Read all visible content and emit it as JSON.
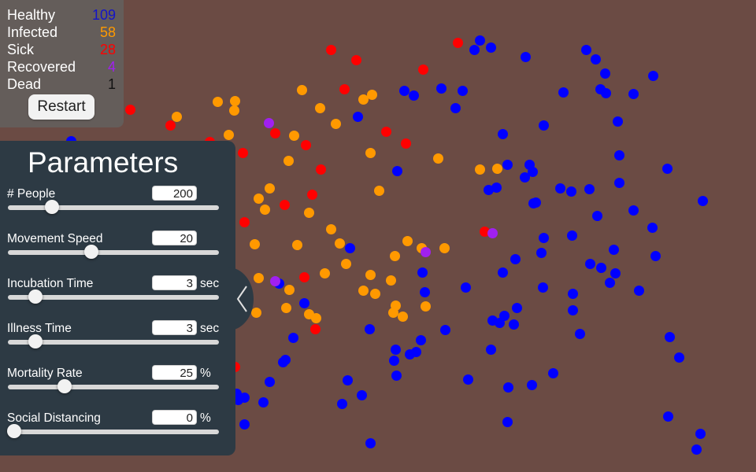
{
  "stats": {
    "rows": [
      {
        "label": "Healthy",
        "value": "109",
        "color": "#1414c8"
      },
      {
        "label": "Infected",
        "value": "58",
        "color": "#ff9a00"
      },
      {
        "label": "Sick",
        "value": "28",
        "color": "#ff0000"
      },
      {
        "label": "Recovered",
        "value": "4",
        "color": "#a020f0"
      },
      {
        "label": "Dead",
        "value": "1",
        "color": "#111111"
      }
    ],
    "restart_label": "Restart"
  },
  "parameters": {
    "title": "Parameters",
    "items": [
      {
        "label": "# People",
        "value": "200",
        "unit": "",
        "slider_fraction": 0.21
      },
      {
        "label": "Movement Speed",
        "value": "20",
        "unit": "",
        "slider_fraction": 0.395
      },
      {
        "label": "Incubation Time",
        "value": "3",
        "unit": "sec",
        "slider_fraction": 0.13
      },
      {
        "label": "Illness Time",
        "value": "3",
        "unit": "sec",
        "slider_fraction": 0.13
      },
      {
        "label": "Mortality Rate",
        "value": "25",
        "unit": "%",
        "slider_fraction": 0.27
      },
      {
        "label": "Social Distancing",
        "value": "0",
        "unit": "%",
        "slider_fraction": 0.03
      }
    ]
  },
  "colors": {
    "background": "#6b4b44",
    "healthy": "#0000ff",
    "infected": "#ff9900",
    "sick": "#ff0000",
    "recovered": "#a020f0",
    "panel": "#2d3a44"
  },
  "icons": {
    "collapse": "chevron-left-icon"
  }
}
